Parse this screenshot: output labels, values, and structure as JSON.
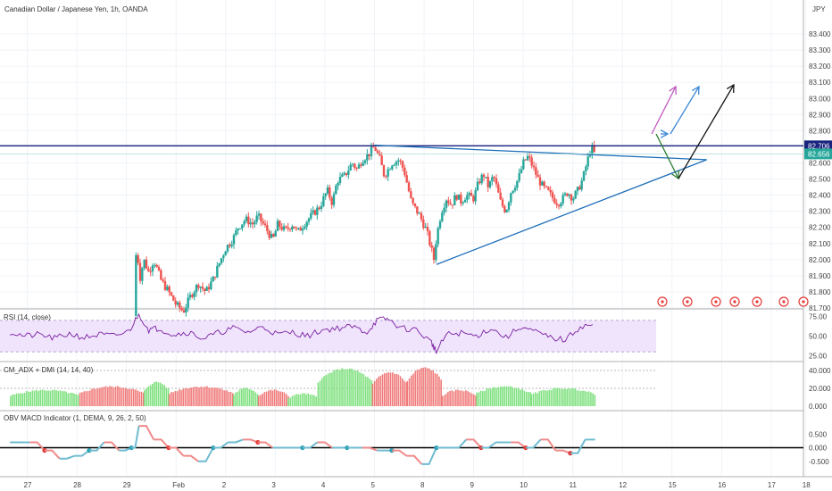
{
  "header": {
    "title": "Canadian Dollar / Japanese Yen, 1h, OANDA",
    "currency": "JPY"
  },
  "colors": {
    "up": "#26a69a",
    "down": "#ef5350",
    "level_line": "#1a237e",
    "trend_line": "#1e6fb8",
    "arrow_magenta": "#c05ac0",
    "arrow_blue": "#3a87d8",
    "arrow_black": "#111111",
    "arrow_green": "#2e7d32",
    "rsi_line": "#7b1fa2",
    "rsi_band": "#efe4fb",
    "adx_green": "#7ee07e",
    "adx_red": "#f07a7a",
    "obv_up": "#6fbcd0",
    "obv_down": "#f08a8a"
  },
  "chart_data": [
    {
      "type": "candlestick",
      "title": "Canadian Dollar / Japanese Yen, 1h, OANDA",
      "ylim": [
        81.7,
        83.5
      ],
      "y_ticks": [
        "83.400",
        "83.300",
        "83.200",
        "83.100",
        "83.000",
        "82.900",
        "82.800",
        "82.700",
        "82.600",
        "82.500",
        "82.400",
        "82.300",
        "82.200",
        "82.100",
        "82.000",
        "81.900",
        "81.800",
        "81.700"
      ],
      "price_labels": {
        "resistance": "82.706",
        "last": "82.656"
      },
      "close_path": [
        [
          29.5,
          81.65
        ],
        [
          29.55,
          82.1
        ],
        [
          29.62,
          81.88
        ],
        [
          29.7,
          82.0
        ],
        [
          29.8,
          81.92
        ],
        [
          29.9,
          82.0
        ],
        [
          30.05,
          81.87
        ],
        [
          30.2,
          81.8
        ],
        [
          30.35,
          81.72
        ],
        [
          30.5,
          81.68
        ],
        [
          30.65,
          81.78
        ],
        [
          30.8,
          81.85
        ],
        [
          30.95,
          81.8
        ],
        [
          31.1,
          81.88
        ],
        [
          31.25,
          82.0
        ],
        [
          31.35,
          82.07
        ],
        [
          31.5,
          82.13
        ],
        [
          31.6,
          82.2
        ],
        [
          31.75,
          82.25
        ],
        [
          31.9,
          82.22
        ],
        [
          32.0,
          82.27
        ],
        [
          32.15,
          82.2
        ],
        [
          32.3,
          82.12
        ],
        [
          32.4,
          82.22
        ],
        [
          32.55,
          82.18
        ],
        [
          32.7,
          82.22
        ],
        [
          32.8,
          82.17
        ],
        [
          32.95,
          82.23
        ],
        [
          33.1,
          82.28
        ],
        [
          33.25,
          82.33
        ],
        [
          33.4,
          82.43
        ],
        [
          33.5,
          82.35
        ],
        [
          33.6,
          82.49
        ],
        [
          33.75,
          82.52
        ],
        [
          33.9,
          82.6
        ],
        [
          34.0,
          82.56
        ],
        [
          34.1,
          82.62
        ],
        [
          34.25,
          82.66
        ],
        [
          34.35,
          82.7
        ],
        [
          34.45,
          82.63
        ],
        [
          34.55,
          82.52
        ],
        [
          34.7,
          82.6
        ],
        [
          34.85,
          82.62
        ],
        [
          34.95,
          82.55
        ],
        [
          35.1,
          82.35
        ],
        [
          35.25,
          82.28
        ],
        [
          35.4,
          82.18
        ],
        [
          35.55,
          82.0
        ],
        [
          35.6,
          82.14
        ],
        [
          35.7,
          82.3
        ],
        [
          35.8,
          82.38
        ],
        [
          35.9,
          82.34
        ],
        [
          36.0,
          82.4
        ],
        [
          36.1,
          82.36
        ],
        [
          36.2,
          82.4
        ],
        [
          36.35,
          82.38
        ],
        [
          36.45,
          82.48
        ],
        [
          36.55,
          82.53
        ],
        [
          36.65,
          82.45
        ],
        [
          36.75,
          82.52
        ],
        [
          36.9,
          82.35
        ],
        [
          37.0,
          82.3
        ],
        [
          37.1,
          82.42
        ],
        [
          37.25,
          82.5
        ],
        [
          37.35,
          82.6
        ],
        [
          37.45,
          82.64
        ],
        [
          37.55,
          82.57
        ],
        [
          37.65,
          82.5
        ],
        [
          37.75,
          82.45
        ],
        [
          37.85,
          82.42
        ],
        [
          37.95,
          82.38
        ],
        [
          38.05,
          82.35
        ],
        [
          38.15,
          82.38
        ],
        [
          38.25,
          82.42
        ],
        [
          38.35,
          82.38
        ],
        [
          38.45,
          82.43
        ],
        [
          38.55,
          82.5
        ],
        [
          38.65,
          82.62
        ],
        [
          38.72,
          82.7
        ],
        [
          38.78,
          82.66
        ],
        [
          38.82,
          82.656
        ]
      ],
      "annotation_lines": [
        {
          "kind": "horizontal",
          "value": 82.706
        },
        {
          "kind": "trend",
          "from": [
            34.35,
            82.71
          ],
          "to": [
            41.05,
            82.62
          ]
        },
        {
          "kind": "trend",
          "from": [
            35.6,
            81.97
          ],
          "to": [
            41.05,
            82.62
          ]
        }
      ],
      "x_ticks": [
        "27",
        "28",
        "29",
        "Feb",
        "2",
        "3",
        "4",
        "5",
        "8",
        "9",
        "10",
        "11",
        "12",
        "15",
        "16",
        "17",
        "18"
      ]
    },
    {
      "type": "line",
      "title": "RSI (14, close)",
      "ylim": [
        20,
        80
      ],
      "y_ticks": [
        "75.00",
        "50.00",
        "25.00"
      ],
      "band": [
        30,
        70
      ],
      "x": [
        27.0,
        27.3,
        27.6,
        27.9,
        28.2,
        28.5,
        28.8,
        29.1,
        29.4,
        29.6,
        29.8,
        30.0,
        30.3,
        30.6,
        30.9,
        31.2,
        31.5,
        31.8,
        32.1,
        32.4,
        32.7,
        33.0,
        33.3,
        33.6,
        33.9,
        34.2,
        34.4,
        34.6,
        34.9,
        35.2,
        35.5,
        35.6,
        35.8,
        36.1,
        36.4,
        36.7,
        37.0,
        37.3,
        37.6,
        37.9,
        38.2,
        38.5,
        38.8
      ],
      "y": [
        55,
        50,
        52,
        47,
        53,
        48,
        52,
        50,
        56,
        78,
        58,
        60,
        52,
        55,
        47,
        54,
        60,
        55,
        62,
        52,
        55,
        50,
        58,
        60,
        62,
        55,
        70,
        72,
        60,
        58,
        42,
        30,
        52,
        54,
        50,
        60,
        48,
        62,
        55,
        48,
        45,
        62,
        65
      ]
    },
    {
      "type": "bar",
      "title": "CM_ADX + DMI (14, 14, 40)",
      "ylim": [
        0,
        45
      ],
      "y_ticks": [
        "40.000",
        "20.000",
        "0.000"
      ],
      "segments": [
        {
          "x": [
            27.0,
            28.4
          ],
          "level": 18,
          "color": "green"
        },
        {
          "x": [
            28.4,
            29.7
          ],
          "level": 22,
          "color": "red"
        },
        {
          "x": [
            29.7,
            30.2
          ],
          "level": 27,
          "color": "green"
        },
        {
          "x": [
            30.2,
            31.5
          ],
          "level": 22,
          "color": "red"
        },
        {
          "x": [
            31.5,
            32.0
          ],
          "level": 20,
          "color": "green"
        },
        {
          "x": [
            32.0,
            32.6
          ],
          "level": 18,
          "color": "red"
        },
        {
          "x": [
            32.6,
            33.2
          ],
          "level": 14,
          "color": "green"
        },
        {
          "x": [
            33.2,
            34.3
          ],
          "level": 42,
          "color": "green"
        },
        {
          "x": [
            34.3,
            35.0
          ],
          "level": 38,
          "color": "red"
        },
        {
          "x": [
            35.0,
            35.7
          ],
          "level": 43,
          "color": "red"
        },
        {
          "x": [
            35.7,
            36.4
          ],
          "level": 18,
          "color": "red"
        },
        {
          "x": [
            36.4,
            37.5
          ],
          "level": 22,
          "color": "green"
        },
        {
          "x": [
            37.5,
            38.8
          ],
          "level": 20,
          "color": "green"
        }
      ]
    },
    {
      "type": "line",
      "title": "OBV MACD Indicator (1, DEMA, 9, 26, 2, 50)",
      "ylim": [
        -1.0,
        1.2
      ],
      "y_ticks": [
        "0.500",
        "0.000",
        "-0.500"
      ],
      "x": [
        27.0,
        27.4,
        27.7,
        28.0,
        28.3,
        28.6,
        28.9,
        29.2,
        29.45,
        29.6,
        29.9,
        30.2,
        30.5,
        30.8,
        31.1,
        31.4,
        31.7,
        32.0,
        32.3,
        32.6,
        32.9,
        33.2,
        33.5,
        33.8,
        34.1,
        34.4,
        34.7,
        35.0,
        35.3,
        35.6,
        35.9,
        36.2,
        36.5,
        36.8,
        37.1,
        37.4,
        37.7,
        38.0,
        38.3,
        38.6,
        38.8
      ],
      "y": [
        0.2,
        0.2,
        -0.1,
        -0.4,
        -0.3,
        -0.1,
        0.2,
        -0.1,
        0.0,
        0.8,
        0.3,
        0.0,
        -0.3,
        -0.5,
        0.0,
        0.2,
        0.3,
        0.2,
        0.0,
        0.0,
        0.0,
        0.2,
        0.0,
        0.0,
        0.0,
        -0.1,
        -0.1,
        -0.3,
        -0.6,
        0.0,
        0.0,
        0.3,
        0.0,
        0.2,
        0.2,
        0.0,
        0.3,
        -0.1,
        -0.2,
        0.3,
        0.3
      ]
    }
  ],
  "x_axis": [
    "27",
    "28",
    "29",
    "Feb",
    "2",
    "3",
    "4",
    "5",
    "8",
    "9",
    "10",
    "11",
    "12",
    "15",
    "16",
    "17",
    "18"
  ]
}
